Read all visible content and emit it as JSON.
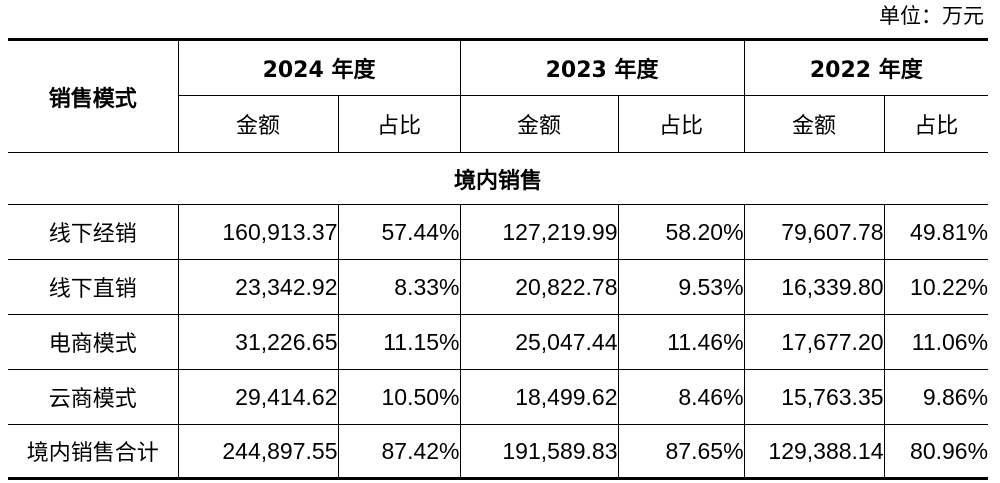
{
  "unit_label": "单位：万元",
  "header": {
    "mode_label": "销售模式",
    "years": [
      "2024 年度",
      "2023 年度",
      "2022 年度"
    ],
    "amount_label": "金额",
    "ratio_label": "占比"
  },
  "section_title": "境内销售",
  "rows": [
    {
      "label": "线下经销",
      "values": [
        "160,913.37",
        "57.44%",
        "127,219.99",
        "58.20%",
        "79,607.78",
        "49.81%"
      ]
    },
    {
      "label": "线下直销",
      "values": [
        "23,342.92",
        "8.33%",
        "20,822.78",
        "9.53%",
        "16,339.80",
        "10.22%"
      ]
    },
    {
      "label": "电商模式",
      "values": [
        "31,226.65",
        "11.15%",
        "25,047.44",
        "11.46%",
        "17,677.20",
        "11.06%"
      ]
    },
    {
      "label": "云商模式",
      "values": [
        "29,414.62",
        "10.50%",
        "18,499.62",
        "8.46%",
        "15,763.35",
        "9.86%"
      ]
    }
  ],
  "total": {
    "label": "境内销售合计",
    "values": [
      "244,897.55",
      "87.42%",
      "191,589.83",
      "87.65%",
      "129,388.14",
      "80.96%"
    ]
  }
}
